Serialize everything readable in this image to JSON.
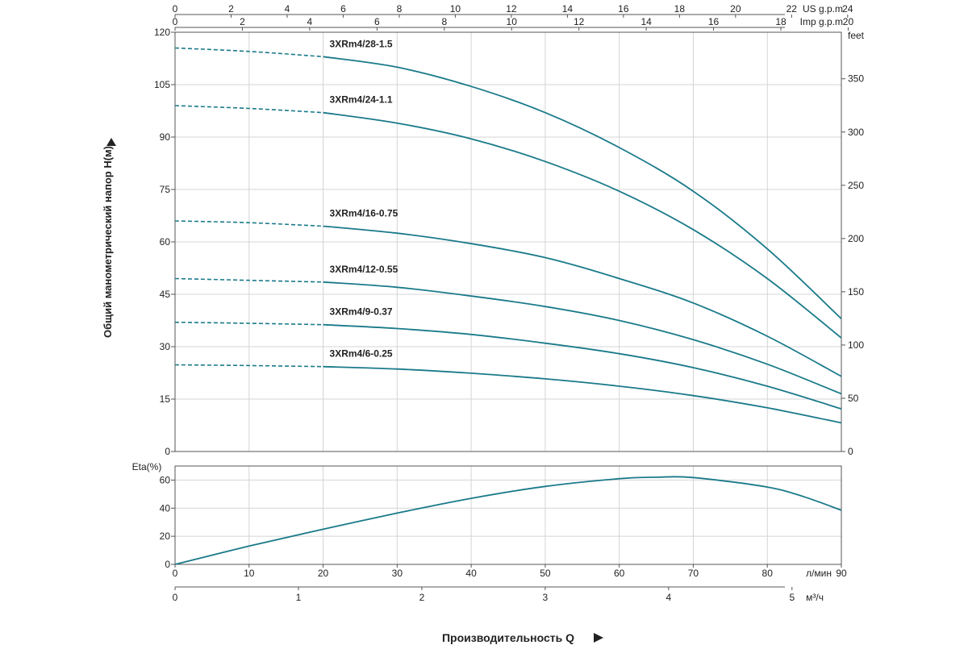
{
  "chart_data": [
    {
      "type": "line",
      "title": "",
      "xlabel": "Производительность Q",
      "ylabel": "Общий манометрический напор H(м)",
      "ylabel_right": "feet",
      "xlim": [
        0,
        90
      ],
      "ylim": [
        0,
        120
      ],
      "x_ticks": [
        0,
        10,
        20,
        30,
        40,
        50,
        60,
        70,
        80,
        90
      ],
      "y_ticks": [
        0,
        15,
        30,
        45,
        60,
        75,
        90,
        105,
        120
      ],
      "y_ticks_right": [
        0,
        50,
        100,
        150,
        200,
        250,
        300,
        350
      ],
      "x_unit": "л/мин",
      "x_unit_m3h": "м³/ч",
      "x_ticks_m3h": [
        0,
        1,
        2,
        3,
        4,
        5
      ],
      "x_unit_us": "US g.p.m",
      "x_ticks_us": [
        0,
        2,
        4,
        6,
        8,
        10,
        12,
        14,
        16,
        18,
        20,
        22,
        24
      ],
      "x_unit_imp": "Imp g.p.m",
      "x_ticks_imp": [
        0,
        2,
        4,
        6,
        8,
        10,
        12,
        14,
        16,
        18,
        20
      ],
      "grid": true,
      "dashed_until_x": 20,
      "x": [
        0,
        10,
        20,
        30,
        40,
        50,
        60,
        70,
        80,
        90
      ],
      "series": [
        {
          "name": "3XRm4/28-1.5",
          "values": [
            115.5,
            114.5,
            113,
            110,
            104.5,
            97,
            87,
            74.5,
            58,
            38
          ]
        },
        {
          "name": "3XRm4/24-1.1",
          "values": [
            99,
            98.2,
            97,
            94,
            89.5,
            83,
            74.5,
            63.5,
            49.5,
            32.5
          ]
        },
        {
          "name": "3XRm4/16-0.75",
          "values": [
            66,
            65.5,
            64.5,
            62.5,
            59.5,
            55.5,
            49.5,
            42.5,
            33,
            21.5
          ]
        },
        {
          "name": "3XRm4/12-0.55",
          "values": [
            49.5,
            49,
            48.5,
            47,
            44.5,
            41.5,
            37.5,
            32,
            25,
            16.5
          ]
        },
        {
          "name": "3XRm4/9-0.37",
          "values": [
            37,
            36.7,
            36.3,
            35.2,
            33.5,
            31,
            28,
            24,
            18.7,
            12.2
          ]
        },
        {
          "name": "3XRm4/6-0.25",
          "values": [
            24.8,
            24.6,
            24.3,
            23.6,
            22.4,
            20.8,
            18.7,
            16,
            12.5,
            8.2
          ]
        }
      ],
      "color": "#1a7a8a"
    },
    {
      "type": "line",
      "title": "",
      "ylabel": "Eta(%)",
      "xlim": [
        0,
        90
      ],
      "ylim": [
        0,
        70
      ],
      "y_ticks": [
        0,
        20,
        40,
        60
      ],
      "grid": true,
      "x": [
        0,
        10,
        20,
        30,
        40,
        50,
        60,
        65,
        70,
        80,
        85,
        90
      ],
      "series": [
        {
          "name": "",
          "values": [
            0,
            13,
            25,
            36.5,
            47,
            55.5,
            61,
            62,
            61.8,
            55,
            48,
            38.5
          ]
        }
      ],
      "color": "#1a7a8a"
    }
  ]
}
